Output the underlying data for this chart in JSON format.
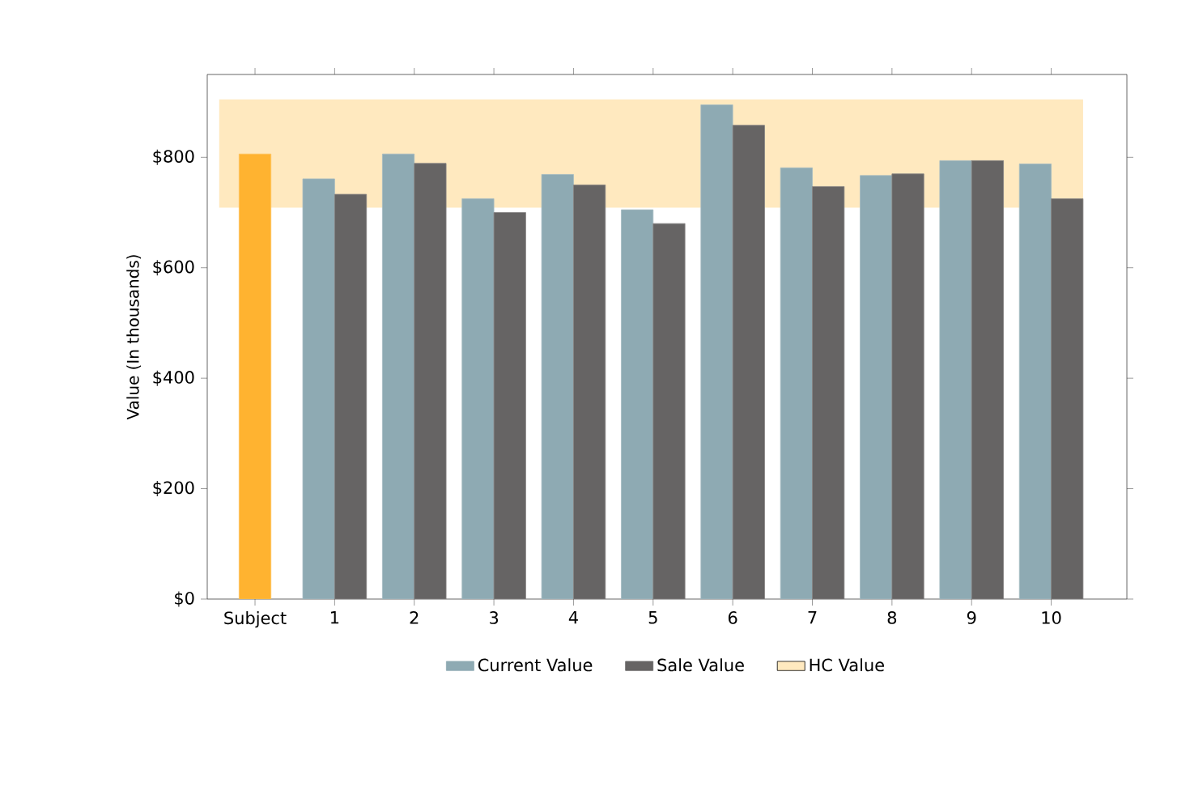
{
  "chart_data": {
    "type": "bar",
    "ylabel": "Value (In thousands)",
    "categories": [
      "Subject",
      "1",
      "2",
      "3",
      "4",
      "5",
      "6",
      "7",
      "8",
      "9",
      "10"
    ],
    "series": [
      {
        "color": "#ffb330",
        "values": [
          806,
          null,
          null,
          null,
          null,
          null,
          null,
          null,
          null,
          null,
          null
        ]
      },
      {
        "name": "Current Value",
        "color": "#8eaab3",
        "values": [
          null,
          761,
          806,
          725,
          769,
          705,
          895,
          781,
          767,
          794,
          788
        ]
      },
      {
        "name": "Sale Value",
        "color": "#666464",
        "values": [
          null,
          733,
          789,
          700,
          750,
          680,
          858,
          747,
          770,
          794,
          725
        ]
      }
    ],
    "bands": [
      {
        "axis": "y",
        "from": 709,
        "to": 905,
        "label": "HC Value",
        "color": "#ffe9bf"
      }
    ],
    "ylim": [
      0,
      950
    ],
    "yticks": [
      {
        "value": 0,
        "label": "$0"
      },
      {
        "value": 200,
        "label": "$200"
      },
      {
        "value": 400,
        "label": "$400"
      },
      {
        "value": 600,
        "label": "$600"
      },
      {
        "value": 800,
        "label": "$800"
      }
    ],
    "legend": "bottom",
    "grid": false
  }
}
